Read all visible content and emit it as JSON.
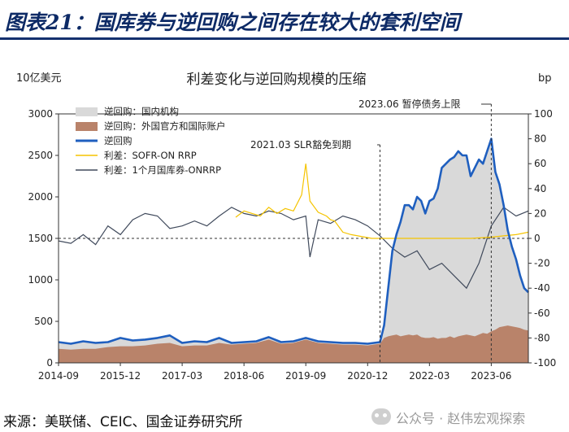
{
  "header": {
    "figure_title": "图表21：国库券与逆回购之间存在较大的套利空间",
    "source": "来源：美联储、CEIC、国金证券研究所",
    "watermark": "公众号 · 赵伟宏观探索"
  },
  "colors": {
    "title_blue": "#0d2a66",
    "domestic_gray": "#d9d9d9",
    "foreign_brown": "#b9836a",
    "rrp_line": "#1f5fbf",
    "sofr_spread": "#f5c400",
    "tbill_spread": "#404a5c"
  },
  "chart_data": {
    "type": "area",
    "title": "利差变化与逆回购规模的压缩",
    "ylabel_left": "10亿美元",
    "ylabel_right": "bp",
    "x_domain": [
      "2014-09",
      "2024-03"
    ],
    "x_ticks": [
      "2014-09",
      "2015-12",
      "2017-03",
      "2018-06",
      "2019-09",
      "2020-12",
      "2022-03",
      "2023-06"
    ],
    "ylim_left": [
      0,
      3000
    ],
    "y_ticks_left": [
      0,
      500,
      1000,
      1500,
      2000,
      2500,
      3000
    ],
    "ylim_right": [
      -100,
      100
    ],
    "y_ticks_right": [
      -100,
      -80,
      -60,
      -40,
      -20,
      0,
      20,
      40,
      60,
      80,
      100
    ],
    "grid": false,
    "legend_position": "top-left",
    "legend": [
      {
        "label": "逆回购：国内机构",
        "kind": "area",
        "color": "#d9d9d9"
      },
      {
        "label": "逆回购：外国官方和国际账户",
        "kind": "area",
        "color": "#b9836a"
      },
      {
        "label": "逆回购",
        "kind": "thick-line",
        "color": "#1f5fbf"
      },
      {
        "label": "利差：SOFR-ON RRP",
        "kind": "line",
        "color": "#f5c400"
      },
      {
        "label": "利差：1个月国库券-ONRRP",
        "kind": "line",
        "color": "#404a5c"
      }
    ],
    "annotations": [
      {
        "text": "2023.06 暂停债务上限",
        "x": "2023-06"
      },
      {
        "text": "2021.03 SLR豁免到期",
        "x": "2021-03"
      }
    ],
    "series": [
      {
        "name": "逆回购",
        "axis": "left",
        "x": [
          "2014-09",
          "2014-12",
          "2015-03",
          "2015-06",
          "2015-09",
          "2015-12",
          "2016-03",
          "2016-06",
          "2016-09",
          "2016-12",
          "2017-03",
          "2017-06",
          "2017-09",
          "2017-12",
          "2018-03",
          "2018-06",
          "2018-09",
          "2018-12",
          "2019-03",
          "2019-06",
          "2019-09",
          "2019-12",
          "2020-03",
          "2020-06",
          "2020-09",
          "2020-12",
          "2021-03",
          "2021-04",
          "2021-05",
          "2021-06",
          "2021-07",
          "2021-08",
          "2021-09",
          "2021-10",
          "2021-11",
          "2021-12",
          "2022-01",
          "2022-02",
          "2022-03",
          "2022-04",
          "2022-05",
          "2022-06",
          "2022-07",
          "2022-08",
          "2022-09",
          "2022-10",
          "2022-11",
          "2022-12",
          "2023-01",
          "2023-02",
          "2023-03",
          "2023-04",
          "2023-05",
          "2023-06",
          "2023-07",
          "2023-08",
          "2023-09",
          "2023-10",
          "2023-11",
          "2023-12",
          "2024-01",
          "2024-02",
          "2024-03"
        ],
        "values": [
          250,
          230,
          260,
          240,
          250,
          300,
          270,
          280,
          300,
          330,
          240,
          260,
          250,
          300,
          240,
          250,
          260,
          310,
          250,
          260,
          300,
          260,
          250,
          240,
          240,
          230,
          250,
          450,
          900,
          1350,
          1550,
          1700,
          1900,
          1900,
          1850,
          2000,
          1950,
          1800,
          1950,
          1980,
          2100,
          2350,
          2400,
          2450,
          2480,
          2550,
          2500,
          2500,
          2250,
          2350,
          2450,
          2400,
          2550,
          2700,
          2300,
          2150,
          1900,
          1600,
          1400,
          1250,
          1050,
          900,
          850
        ]
      },
      {
        "name": "逆回购：外国官方和国际账户",
        "axis": "left",
        "x": [
          "2014-09",
          "2014-12",
          "2015-03",
          "2015-06",
          "2015-09",
          "2015-12",
          "2016-03",
          "2016-06",
          "2016-09",
          "2016-12",
          "2017-03",
          "2017-06",
          "2017-09",
          "2017-12",
          "2018-03",
          "2018-06",
          "2018-09",
          "2018-12",
          "2019-03",
          "2019-06",
          "2019-09",
          "2019-12",
          "2020-03",
          "2020-06",
          "2020-09",
          "2020-12",
          "2021-03",
          "2021-04",
          "2021-05",
          "2021-06",
          "2021-07",
          "2021-08",
          "2021-09",
          "2021-10",
          "2021-11",
          "2021-12",
          "2022-01",
          "2022-02",
          "2022-03",
          "2022-04",
          "2022-05",
          "2022-06",
          "2022-07",
          "2022-08",
          "2022-09",
          "2022-10",
          "2022-11",
          "2022-12",
          "2023-01",
          "2023-02",
          "2023-03",
          "2023-04",
          "2023-05",
          "2023-06",
          "2023-07",
          "2023-08",
          "2023-09",
          "2023-10",
          "2023-11",
          "2023-12",
          "2024-01",
          "2024-02",
          "2024-03"
        ],
        "values": [
          170,
          160,
          170,
          170,
          190,
          200,
          200,
          210,
          230,
          240,
          200,
          210,
          210,
          240,
          220,
          230,
          240,
          280,
          230,
          240,
          280,
          240,
          230,
          220,
          220,
          210,
          230,
          300,
          320,
          330,
          340,
          320,
          330,
          340,
          330,
          340,
          310,
          300,
          300,
          310,
          290,
          300,
          300,
          320,
          300,
          320,
          330,
          340,
          330,
          320,
          340,
          360,
          350,
          380,
          400,
          430,
          440,
          450,
          440,
          430,
          420,
          400,
          390
        ]
      },
      {
        "name": "利差：SOFR-ON RRP",
        "axis": "right",
        "x": [
          "2018-04",
          "2018-06",
          "2018-08",
          "2018-10",
          "2018-12",
          "2019-02",
          "2019-04",
          "2019-06",
          "2019-08",
          "2019-09",
          "2019-10",
          "2019-12",
          "2020-02",
          "2020-03",
          "2020-04",
          "2020-06",
          "2020-08",
          "2021-01",
          "2021-06",
          "2022-01",
          "2022-06",
          "2023-01",
          "2023-06",
          "2023-09",
          "2023-12",
          "2024-03"
        ],
        "values": [
          17,
          22,
          20,
          18,
          25,
          20,
          24,
          22,
          35,
          60,
          30,
          21,
          18,
          15,
          14,
          5,
          3,
          0,
          0,
          0,
          0,
          0,
          1,
          2,
          3,
          5
        ]
      },
      {
        "name": "利差：1个月国库券-ONRRP",
        "axis": "right",
        "x": [
          "2014-09",
          "2014-12",
          "2015-03",
          "2015-06",
          "2015-09",
          "2015-12",
          "2016-03",
          "2016-06",
          "2016-09",
          "2016-12",
          "2017-03",
          "2017-06",
          "2017-09",
          "2017-12",
          "2018-03",
          "2018-06",
          "2018-09",
          "2018-12",
          "2019-03",
          "2019-06",
          "2019-09",
          "2019-10",
          "2019-12",
          "2020-03",
          "2020-06",
          "2020-09",
          "2020-12",
          "2021-03",
          "2021-06",
          "2021-09",
          "2021-12",
          "2022-03",
          "2022-06",
          "2022-09",
          "2022-12",
          "2023-03",
          "2023-06",
          "2023-09",
          "2023-12",
          "2024-03"
        ],
        "values": [
          -2,
          -4,
          3,
          -5,
          10,
          3,
          15,
          20,
          18,
          8,
          10,
          14,
          10,
          18,
          25,
          20,
          18,
          22,
          20,
          15,
          18,
          -15,
          15,
          12,
          18,
          15,
          10,
          2,
          -8,
          -15,
          -10,
          -25,
          -20,
          -30,
          -40,
          -20,
          10,
          25,
          18,
          22
        ]
      }
    ]
  }
}
